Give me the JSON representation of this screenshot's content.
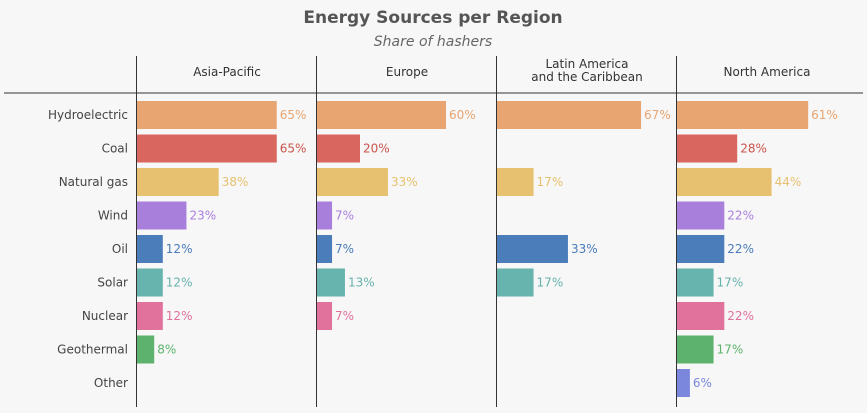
{
  "chart_data": {
    "type": "bar",
    "orientation": "horizontal",
    "title": "Energy Sources per Region",
    "subtitle": "Share of hashers",
    "value_suffix": "%",
    "xlim": [
      0,
      100
    ],
    "categories": [
      "Hydroelectric",
      "Coal",
      "Natural gas",
      "Wind",
      "Oil",
      "Solar",
      "Nuclear",
      "Geothermal",
      "Other"
    ],
    "category_colors": [
      "#e8a571",
      "#d9665f",
      "#e8c170",
      "#a97fdc",
      "#4a7dba",
      "#67b3ad",
      "#e0729c",
      "#5db26d",
      "#7a87dc"
    ],
    "label_colors": [
      "#e8a571",
      "#c9544d",
      "#e8c170",
      "#a97fdc",
      "#4a7dba",
      "#67b3ad",
      "#e0729c",
      "#5db26d",
      "#7a87dc"
    ],
    "series": [
      {
        "name": "Asia-Pacific",
        "values": [
          65,
          65,
          38,
          23,
          12,
          12,
          12,
          8,
          null
        ]
      },
      {
        "name": "Europe",
        "values": [
          60,
          20,
          33,
          7,
          7,
          13,
          7,
          null,
          null
        ]
      },
      {
        "name": "Latin America and the Caribbean",
        "name_lines": [
          "Latin America",
          "and the Caribbean"
        ],
        "values": [
          67,
          null,
          17,
          null,
          33,
          17,
          null,
          null,
          null
        ]
      },
      {
        "name": "North America",
        "values": [
          61,
          28,
          44,
          22,
          22,
          17,
          22,
          17,
          6
        ]
      }
    ]
  }
}
